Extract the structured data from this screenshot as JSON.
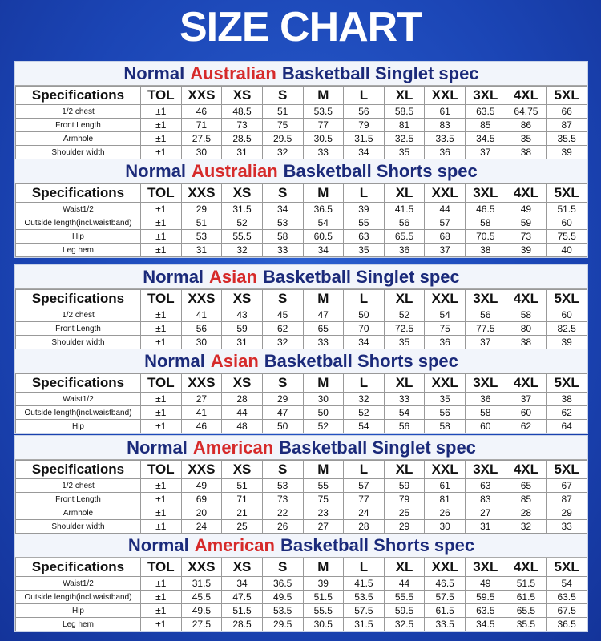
{
  "header": {
    "title": "SIZE CHART"
  },
  "panels": [
    {
      "tables": [
        {
          "title": [
            "Normal",
            "Australian",
            "Basketball Singlet spec"
          ],
          "columns": [
            "Specifications",
            "TOL",
            "XXS",
            "XS",
            "S",
            "M",
            "L",
            "XL",
            "XXL",
            "3XL",
            "4XL",
            "5XL"
          ],
          "rows": [
            [
              "1/2 chest",
              "±1",
              "46",
              "48.5",
              "51",
              "53.5",
              "56",
              "58.5",
              "61",
              "63.5",
              "64.75",
              "66"
            ],
            [
              "Front Length",
              "±1",
              "71",
              "73",
              "75",
              "77",
              "79",
              "81",
              "83",
              "85",
              "86",
              "87"
            ],
            [
              "Armhole",
              "±1",
              "27.5",
              "28.5",
              "29.5",
              "30.5",
              "31.5",
              "32.5",
              "33.5",
              "34.5",
              "35",
              "35.5"
            ],
            [
              "Shoulder width",
              "±1",
              "30",
              "31",
              "32",
              "33",
              "34",
              "35",
              "36",
              "37",
              "38",
              "39"
            ]
          ]
        },
        {
          "title": [
            "Normal",
            "Australian",
            "Basketball Shorts spec"
          ],
          "columns": [
            "Specifications",
            "TOL",
            "XXS",
            "XS",
            "S",
            "M",
            "L",
            "XL",
            "XXL",
            "3XL",
            "4XL",
            "5XL"
          ],
          "rows": [
            [
              "Waist1/2",
              "±1",
              "29",
              "31.5",
              "34",
              "36.5",
              "39",
              "41.5",
              "44",
              "46.5",
              "49",
              "51.5"
            ],
            [
              "Outside length(incl.waistband)",
              "±1",
              "51",
              "52",
              "53",
              "54",
              "55",
              "56",
              "57",
              "58",
              "59",
              "60"
            ],
            [
              "Hip",
              "±1",
              "53",
              "55.5",
              "58",
              "60.5",
              "63",
              "65.5",
              "68",
              "70.5",
              "73",
              "75.5"
            ],
            [
              "Leg hem",
              "±1",
              "31",
              "32",
              "33",
              "34",
              "35",
              "36",
              "37",
              "38",
              "39",
              "40"
            ]
          ]
        }
      ]
    },
    {
      "tables": [
        {
          "title": [
            "Normal",
            "Asian",
            "Basketball Singlet spec"
          ],
          "columns": [
            "Specifications",
            "TOL",
            "XXS",
            "XS",
            "S",
            "M",
            "L",
            "XL",
            "XXL",
            "3XL",
            "4XL",
            "5XL"
          ],
          "rows": [
            [
              "1/2 chest",
              "±1",
              "41",
              "43",
              "45",
              "47",
              "50",
              "52",
              "54",
              "56",
              "58",
              "60"
            ],
            [
              "Front Length",
              "±1",
              "56",
              "59",
              "62",
              "65",
              "70",
              "72.5",
              "75",
              "77.5",
              "80",
              "82.5"
            ],
            [
              "Shoulder width",
              "±1",
              "30",
              "31",
              "32",
              "33",
              "34",
              "35",
              "36",
              "37",
              "38",
              "39"
            ]
          ]
        },
        {
          "title": [
            "Normal",
            "Asian",
            "Basketball Shorts spec"
          ],
          "columns": [
            "Specifications",
            "TOL",
            "XXS",
            "XS",
            "S",
            "M",
            "L",
            "XL",
            "XXL",
            "3XL",
            "4XL",
            "5XL"
          ],
          "rows": [
            [
              "Waist1/2",
              "±1",
              "27",
              "28",
              "29",
              "30",
              "32",
              "33",
              "35",
              "36",
              "37",
              "38"
            ],
            [
              "Outside length(incl.waistband)",
              "±1",
              "41",
              "44",
              "47",
              "50",
              "52",
              "54",
              "56",
              "58",
              "60",
              "62"
            ],
            [
              "Hip",
              "±1",
              "46",
              "48",
              "50",
              "52",
              "54",
              "56",
              "58",
              "60",
              "62",
              "64"
            ]
          ]
        }
      ]
    },
    {
      "tables": [
        {
          "title": [
            "Normal",
            "American",
            "Basketball Singlet spec"
          ],
          "columns": [
            "Specifications",
            "TOL",
            "XXS",
            "XS",
            "S",
            "M",
            "L",
            "XL",
            "XXL",
            "3XL",
            "4XL",
            "5XL"
          ],
          "rows": [
            [
              "1/2 chest",
              "±1",
              "49",
              "51",
              "53",
              "55",
              "57",
              "59",
              "61",
              "63",
              "65",
              "67"
            ],
            [
              "Front Length",
              "±1",
              "69",
              "71",
              "73",
              "75",
              "77",
              "79",
              "81",
              "83",
              "85",
              "87"
            ],
            [
              "Armhole",
              "±1",
              "20",
              "21",
              "22",
              "23",
              "24",
              "25",
              "26",
              "27",
              "28",
              "29"
            ],
            [
              "Shoulder width",
              "±1",
              "24",
              "25",
              "26",
              "27",
              "28",
              "29",
              "30",
              "31",
              "32",
              "33"
            ]
          ]
        },
        {
          "title": [
            "Normal",
            "American",
            "Basketball Shorts spec"
          ],
          "columns": [
            "Specifications",
            "TOL",
            "XXS",
            "XS",
            "S",
            "M",
            "L",
            "XL",
            "XXL",
            "3XL",
            "4XL",
            "5XL"
          ],
          "rows": [
            [
              "Waist1/2",
              "±1",
              "31.5",
              "34",
              "36.5",
              "39",
              "41.5",
              "44",
              "46.5",
              "49",
              "51.5",
              "54"
            ],
            [
              "Outside length(incl.waistband)",
              "±1",
              "45.5",
              "47.5",
              "49.5",
              "51.5",
              "53.5",
              "55.5",
              "57.5",
              "59.5",
              "61.5",
              "63.5"
            ],
            [
              "Hip",
              "±1",
              "49.5",
              "51.5",
              "53.5",
              "55.5",
              "57.5",
              "59.5",
              "61.5",
              "63.5",
              "65.5",
              "67.5"
            ],
            [
              "Leg hem",
              "±1",
              "27.5",
              "28.5",
              "29.5",
              "30.5",
              "31.5",
              "32.5",
              "33.5",
              "34.5",
              "35.5",
              "36.5"
            ]
          ]
        }
      ]
    }
  ]
}
